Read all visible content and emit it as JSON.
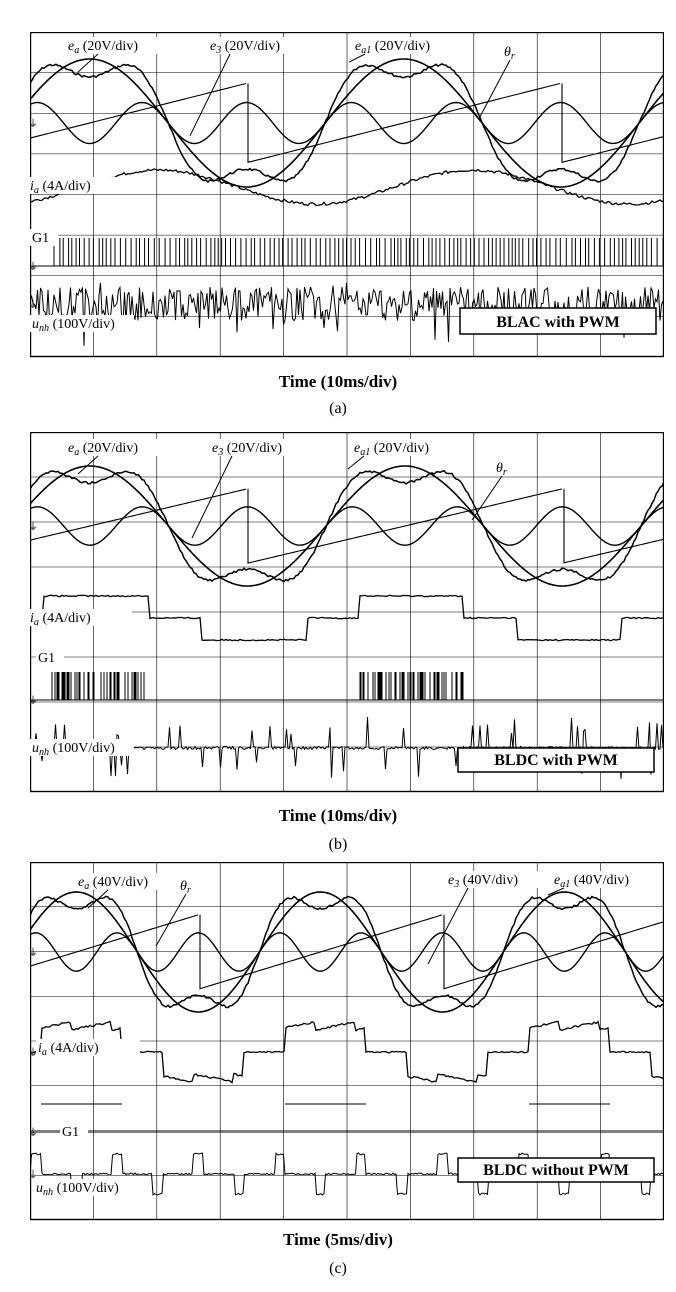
{
  "panels": [
    {
      "id": "a",
      "sublabel": "(a)",
      "xlabel": "Time (10ms/div)",
      "mode_box": "BLAC with PWM",
      "labels": {
        "ea": {
          "sym": "e",
          "sub": "a",
          "scale": " (20V/div)"
        },
        "e3": {
          "sym": "e",
          "sub": "3",
          "scale": " (20V/div)"
        },
        "ea1": {
          "sym": "e",
          "sub": "a1",
          "scale": " (20V/div)"
        },
        "theta": {
          "sym": "θ",
          "sub": "r",
          "scale": ""
        },
        "ia": {
          "sym": "i",
          "sub": "a",
          "scale": " (4A/div)"
        },
        "g1": {
          "sym": "G1",
          "sub": "",
          "scale": ""
        },
        "unh": {
          "sym": "u",
          "sub": "nh",
          "scale": " (100V/div)"
        }
      },
      "chart_data": {
        "type": "line",
        "grid": true,
        "divisions": {
          "x": 10,
          "y": 8
        },
        "time_per_div_ms": 10,
        "electrical_periods_shown": 2.0,
        "current_shape": "sinusoidal",
        "gate_pattern": "continuous PWM",
        "series": [
          "e_a",
          "e_3",
          "e_a1",
          "θ_r",
          "i_a",
          "G1",
          "u_nh"
        ]
      }
    },
    {
      "id": "b",
      "sublabel": "(b)",
      "xlabel": "Time (10ms/div)",
      "mode_box": "BLDC with PWM",
      "labels": {
        "ea": {
          "sym": "e",
          "sub": "a",
          "scale": " (20V/div)"
        },
        "e3": {
          "sym": "e",
          "sub": "3",
          "scale": " (20V/div)"
        },
        "ea1": {
          "sym": "e",
          "sub": "a1",
          "scale": " (20V/div)"
        },
        "theta": {
          "sym": "θ",
          "sub": "r",
          "scale": ""
        },
        "ia": {
          "sym": "i",
          "sub": "a",
          "scale": " (4A/div)"
        },
        "g1": {
          "sym": "G1",
          "sub": "",
          "scale": ""
        },
        "unh": {
          "sym": "u",
          "sub": "nh",
          "scale": " (100V/div)"
        }
      },
      "chart_data": {
        "type": "line",
        "grid": true,
        "divisions": {
          "x": 10,
          "y": 8
        },
        "time_per_div_ms": 10,
        "electrical_periods_shown": 2.0,
        "current_shape": "quasi-square (120° conduction)",
        "gate_pattern": "PWM during conduction interval",
        "series": [
          "e_a",
          "e_3",
          "e_a1",
          "θ_r",
          "i_a",
          "G1",
          "u_nh"
        ]
      }
    },
    {
      "id": "c",
      "sublabel": "(c)",
      "xlabel": "Time (5ms/div)",
      "mode_box": "BLDC without PWM",
      "labels": {
        "ea": {
          "sym": "e",
          "sub": "a",
          "scale": " (40V/div)"
        },
        "e3": {
          "sym": "e",
          "sub": "3",
          "scale": " (40V/div)"
        },
        "ea1": {
          "sym": "e",
          "sub": "a1",
          "scale": " (40V/div)"
        },
        "theta": {
          "sym": "θ",
          "sub": "r",
          "scale": ""
        },
        "ia": {
          "sym": "i",
          "sub": "a",
          "scale": " (4A/div)"
        },
        "g1": {
          "sym": "G1",
          "sub": "",
          "scale": ""
        },
        "unh": {
          "sym": "u",
          "sub": "nh",
          "scale": " (100V/div)"
        }
      },
      "chart_data": {
        "type": "line",
        "grid": true,
        "divisions": {
          "x": 10,
          "y": 8
        },
        "time_per_div_ms": 5,
        "electrical_periods_shown": 2.0,
        "current_shape": "quasi-square with ripple",
        "gate_pattern": "single pulse per period",
        "series": [
          "e_a",
          "e_3",
          "e_a1",
          "θ_r",
          "i_a",
          "G1",
          "u_nh"
        ]
      }
    }
  ]
}
